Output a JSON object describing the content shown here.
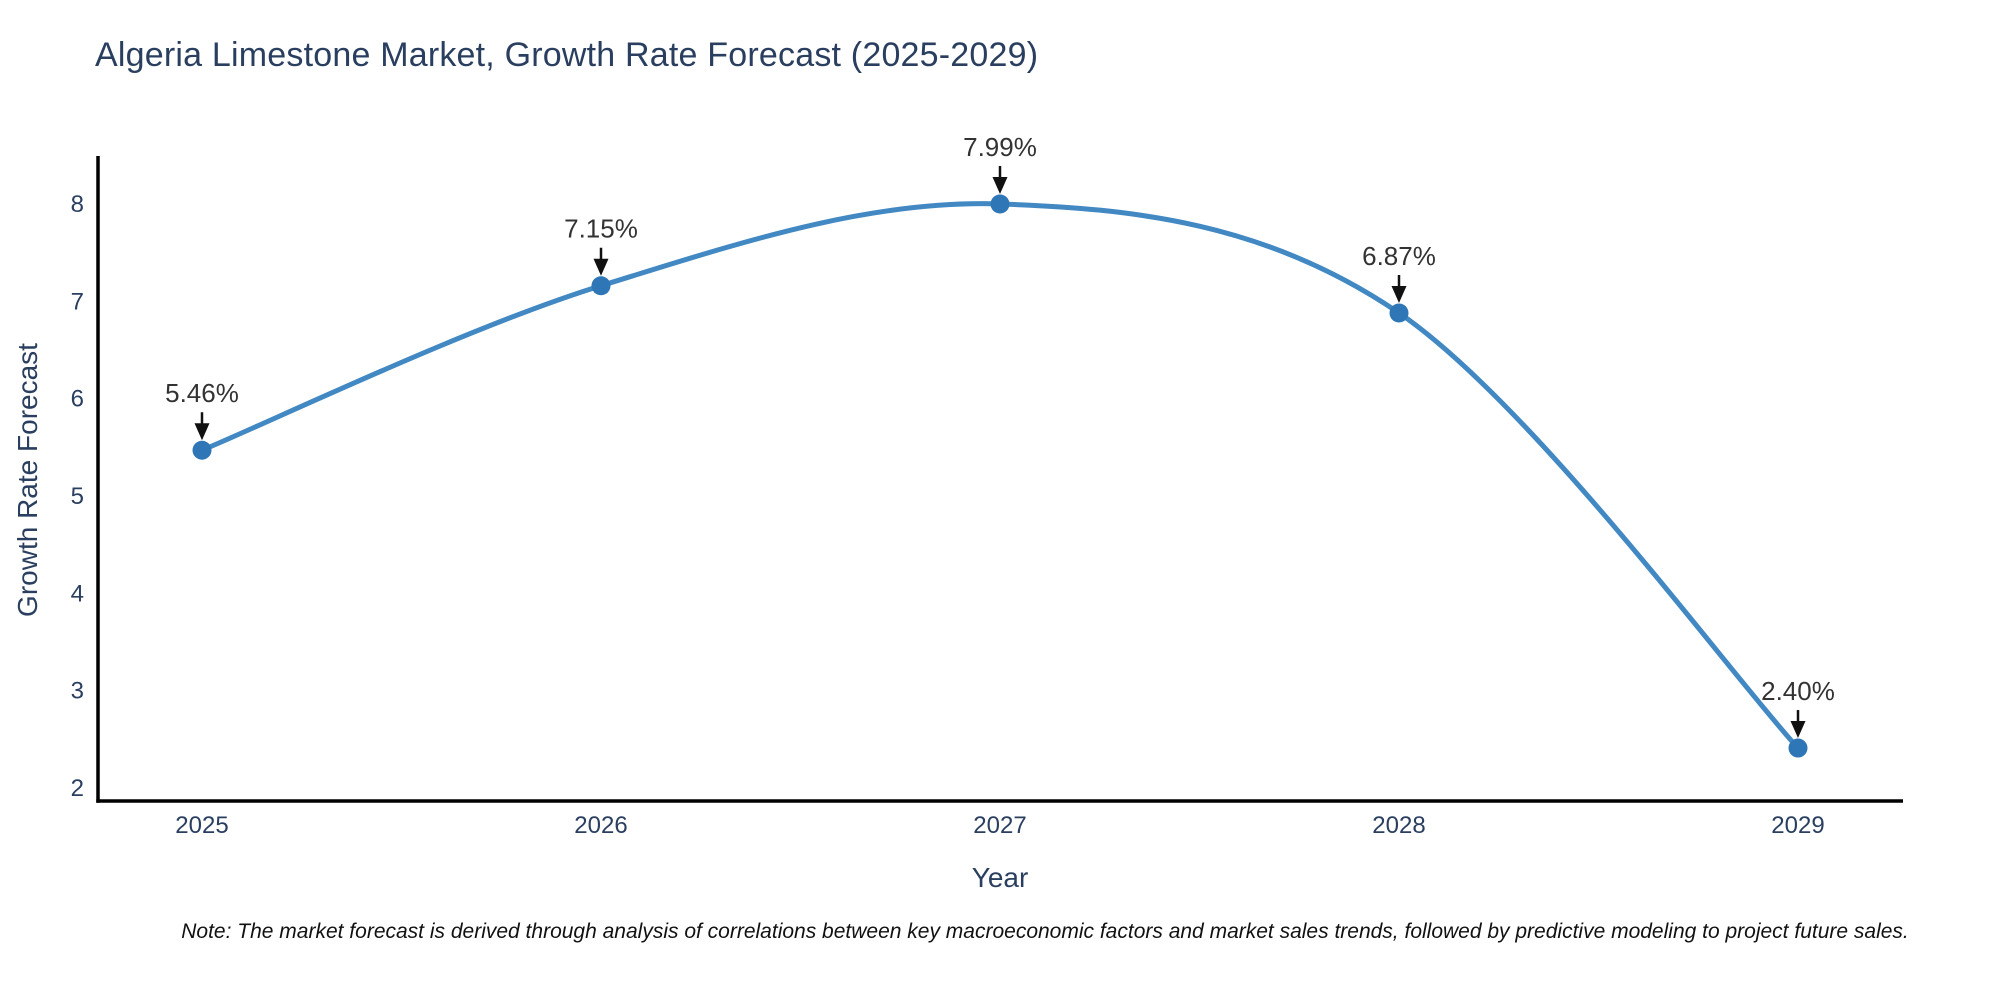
{
  "title": "Algeria Limestone Market, Growth Rate Forecast (2025-2029)",
  "note": "Note: The market forecast is derived through analysis of correlations between key macroeconomic factors and market sales trends, followed by predictive modeling to project future sales.",
  "chart_data": {
    "type": "line",
    "title": "Algeria Limestone Market, Growth Rate Forecast (2025-2029)",
    "xlabel": "Year",
    "ylabel": "Growth Rate Forecast",
    "x": [
      2025,
      2026,
      2027,
      2028,
      2029
    ],
    "series": [
      {
        "name": "Growth Rate Forecast",
        "values": [
          5.46,
          7.15,
          7.99,
          6.87,
          2.4
        ]
      }
    ],
    "point_labels": [
      "5.46%",
      "7.15%",
      "7.99%",
      "6.87%",
      "2.40%"
    ],
    "x_tick_labels": [
      "2025",
      "2026",
      "2027",
      "2028",
      "2029"
    ],
    "y_ticks": [
      2,
      3,
      4,
      5,
      6,
      7,
      8
    ],
    "ylim": [
      1.85,
      8.46
    ],
    "xlim": [
      2024.74,
      2029.26
    ],
    "grid": false,
    "legend_position": "none",
    "line_shape": "spline",
    "colors": {
      "line": "#4288c3",
      "marker": "#2e76b5",
      "axis_line": "#000000",
      "axis_text": "#2a3f5f",
      "annotation_text": "#333333",
      "annotation_arrow": "#111111",
      "background": "#ffffff"
    }
  }
}
